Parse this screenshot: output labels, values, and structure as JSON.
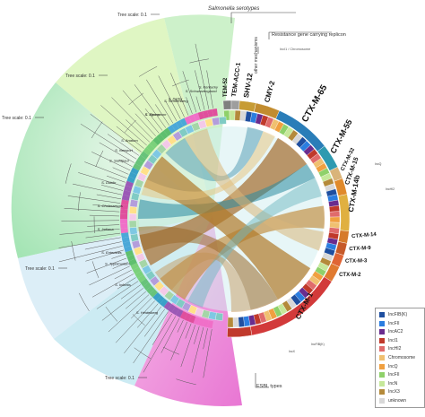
{
  "annotations": {
    "tree_scale": "Tree scale: 0.1",
    "salmonella_serotypes": "Salmonella serotypes",
    "other_mechanisms": "other mechanisms",
    "resistance_gene_replicon": "Resistance gene carrying replicon",
    "esbl_types": "ESBL types",
    "incI1_chromosome": "IncI1 / Chromosome"
  },
  "serotypes": [
    "S. Kentucky",
    "S. Derby",
    "S. Agona",
    "S. Newport",
    "S. Typhimurium",
    "S. Heidelberg",
    "S. Infantis",
    "S. Enteritidis",
    "S. Indiana",
    "S. Choleraesuis",
    "S. Dublin",
    "S. Saintpaul",
    "S. Anatum",
    "S. Thompson",
    "S. Senftenberg",
    "S. Schwarzengrund"
  ],
  "esbl_types": [
    {
      "label": "TEM-52",
      "color": "#7f7f7f"
    },
    {
      "label": "TEM-ACC-1",
      "color": "#9e9e9e"
    },
    {
      "label": "SHV-12",
      "color": "#c79c35"
    },
    {
      "label": "CMY-2",
      "color": "#c28c2f"
    },
    {
      "label": "CTX-M-65",
      "color": "#2a7db8"
    },
    {
      "label": "CTX-M-55",
      "color": "#2e9ab0"
    },
    {
      "label": "CTX-M-32",
      "color": "#d9b47a"
    },
    {
      "label": "CTX-M-15",
      "color": "#e08a2c"
    },
    {
      "label": "CTX-M-14b",
      "color": "#e0b040"
    },
    {
      "label": "CTX-M-14",
      "color": "#d67b2c"
    },
    {
      "label": "CTX-M-9",
      "color": "#c65a2a"
    },
    {
      "label": "CTX-M-3",
      "color": "#e06535"
    },
    {
      "label": "CTX-M-2",
      "color": "#e07a30"
    },
    {
      "label": "CTX-M-1",
      "color": "#d23a3a"
    }
  ],
  "small_labels": {
    "incq": "IncQ",
    "inchi2": "IncHI2",
    "incfib": "IncFIB(K)",
    "incx": "IncX"
  },
  "legend": [
    {
      "label": "IncFIB(K)",
      "color": "#1f4fa0"
    },
    {
      "label": "IncFII",
      "color": "#2b7de0"
    },
    {
      "label": "IncAC2",
      "color": "#6a2c8e"
    },
    {
      "label": "IncI1",
      "color": "#c0392b"
    },
    {
      "label": "IncHI2",
      "color": "#e06b6b"
    },
    {
      "label": "Chromosome",
      "color": "#f0c070"
    },
    {
      "label": "IncQ",
      "color": "#f0a040"
    },
    {
      "label": "IncFII",
      "color": "#8fd16a"
    },
    {
      "label": "IncN",
      "color": "#c6e89a"
    },
    {
      "label": "IncX3",
      "color": "#b48a3a"
    },
    {
      "label": "unknown",
      "color": "#d8d8d8"
    }
  ]
}
